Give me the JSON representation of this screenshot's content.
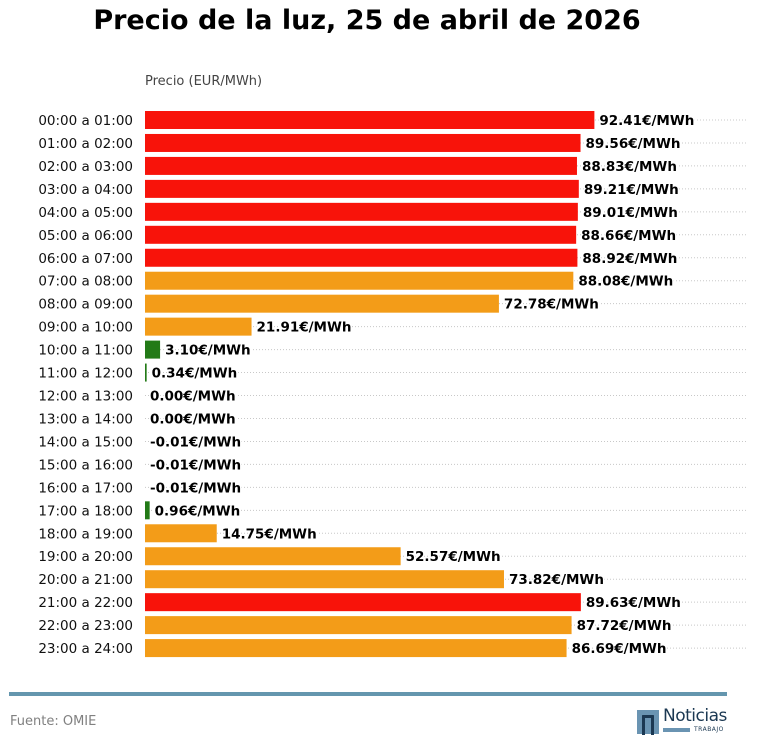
{
  "title": "Precio de la luz, 25 de abril de 2026",
  "footer": {
    "source": "Fuente: OMIE",
    "logo_word": "Noticias",
    "logo_sub": "TRABAJO",
    "logo_icon": "n-letter-icon"
  },
  "chart_data": {
    "type": "bar",
    "orientation": "horizontal",
    "title": "Precio de la luz, 25 de abril de 2026",
    "xlabel": "Precio (EUR/MWh)",
    "ylabel": "",
    "grid": "dotted horizontal lines per row",
    "legend": "none",
    "value_suffix": "€/MWh",
    "categories": [
      "00:00 a 01:00",
      "01:00 a 02:00",
      "02:00 a 03:00",
      "03:00 a 04:00",
      "04:00 a 05:00",
      "05:00 a 06:00",
      "06:00 a 07:00",
      "07:00 a 08:00",
      "08:00 a 09:00",
      "09:00 a 10:00",
      "10:00 a 11:00",
      "11:00 a 12:00",
      "12:00 a 13:00",
      "13:00 a 14:00",
      "14:00 a 15:00",
      "15:00 a 16:00",
      "16:00 a 17:00",
      "17:00 a 18:00",
      "18:00 a 19:00",
      "19:00 a 20:00",
      "20:00 a 21:00",
      "21:00 a 22:00",
      "22:00 a 23:00",
      "23:00 a 24:00"
    ],
    "values": [
      92.41,
      89.56,
      88.83,
      89.21,
      89.01,
      88.66,
      88.92,
      88.08,
      72.78,
      21.91,
      3.1,
      0.34,
      0.0,
      0.0,
      -0.01,
      -0.01,
      -0.01,
      0.96,
      14.75,
      52.57,
      73.82,
      89.63,
      87.72,
      86.69
    ],
    "labels": [
      "92.41€/MWh",
      "89.56€/MWh",
      "88.83€/MWh",
      "89.21€/MWh",
      "89.01€/MWh",
      "88.66€/MWh",
      "88.92€/MWh",
      "88.08€/MWh",
      "72.78€/MWh",
      "21.91€/MWh",
      "3.10€/MWh",
      "0.34€/MWh",
      "0.00€/MWh",
      "0.00€/MWh",
      "-0.01€/MWh",
      "-0.01€/MWh",
      "-0.01€/MWh",
      "0.96€/MWh",
      "14.75€/MWh",
      "52.57€/MWh",
      "73.82€/MWh",
      "89.63€/MWh",
      "87.72€/MWh",
      "86.69€/MWh"
    ],
    "levels": [
      "high",
      "high",
      "high",
      "high",
      "high",
      "high",
      "high",
      "mid",
      "mid",
      "mid",
      "low",
      "low",
      "low",
      "low",
      "low",
      "low",
      "low",
      "low",
      "mid",
      "mid",
      "mid",
      "high",
      "mid",
      "mid"
    ],
    "colors": {
      "high": "#f8130a",
      "mid": "#f39c18",
      "low": "#237a17"
    },
    "xlim": [
      0,
      124
    ]
  }
}
